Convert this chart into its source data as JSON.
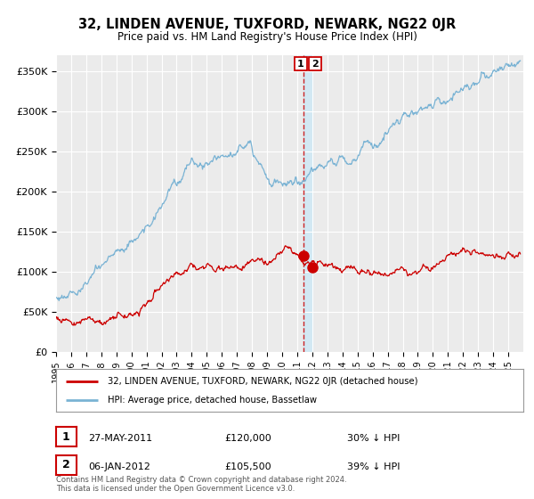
{
  "title": "32, LINDEN AVENUE, TUXFORD, NEWARK, NG22 0JR",
  "subtitle": "Price paid vs. HM Land Registry's House Price Index (HPI)",
  "ylabel_ticks": [
    "£0",
    "£50K",
    "£100K",
    "£150K",
    "£200K",
    "£250K",
    "£300K",
    "£350K"
  ],
  "ytick_values": [
    0,
    50000,
    100000,
    150000,
    200000,
    250000,
    300000,
    350000
  ],
  "ylim": [
    0,
    370000
  ],
  "sale1_x": 2011.41,
  "sale1_price": 120000,
  "sale2_x": 2012.01,
  "sale2_price": 105500,
  "hpi_color": "#7ab3d4",
  "sold_color": "#cc0000",
  "vline_color": "#cc0000",
  "shade_color": "#d0e8f5",
  "background_color": "#ebebeb",
  "grid_color": "#ffffff",
  "legend1_text": "32, LINDEN AVENUE, TUXFORD, NEWARK, NG22 0JR (detached house)",
  "legend2_text": "HPI: Average price, detached house, Bassetlaw",
  "table_row1": [
    "1",
    "27-MAY-2011",
    "£120,000",
    "30% ↓ HPI"
  ],
  "table_row2": [
    "2",
    "06-JAN-2012",
    "£105,500",
    "39% ↓ HPI"
  ],
  "footer": "Contains HM Land Registry data © Crown copyright and database right 2024.\nThis data is licensed under the Open Government Licence v3.0.",
  "xmin": 1995,
  "xmax": 2026
}
